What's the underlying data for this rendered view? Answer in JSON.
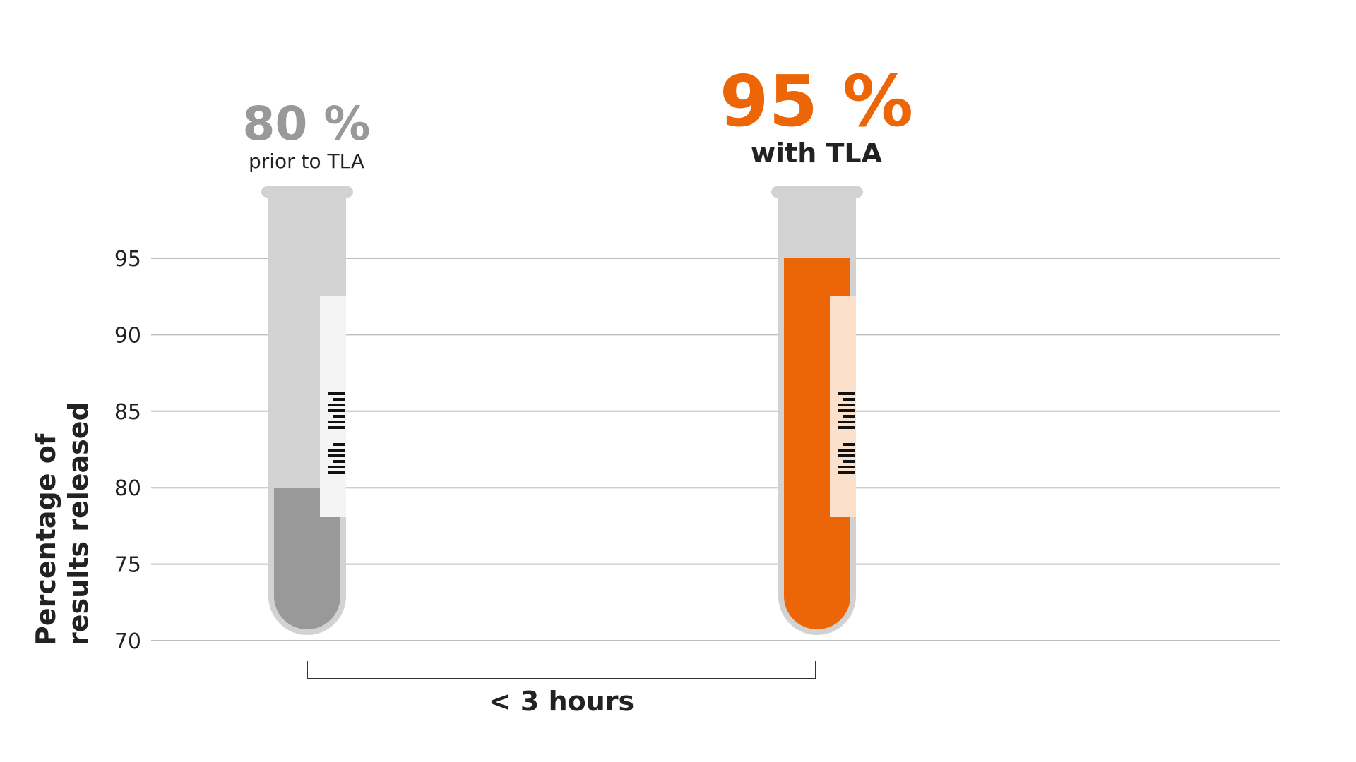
{
  "colors": {
    "before": "#999999",
    "after": "#ec6608",
    "tube": "#d2d2d2",
    "grid": "#bdbdbd",
    "text": "#222222"
  },
  "chart_data": {
    "type": "bar",
    "ylabel": "Percentage of results released",
    "ylabel_lines": [
      "Percentage of",
      "results released"
    ],
    "ylim": [
      70,
      95
    ],
    "yticks": [
      95,
      90,
      85,
      80,
      75,
      70
    ],
    "grid": true,
    "categories": [
      "prior to TLA",
      "with TLA"
    ],
    "series": [
      {
        "values": [
          80,
          95
        ],
        "labels": [
          "80 %",
          "95 %"
        ]
      }
    ],
    "annotations": [
      {
        "text": "< 3 hours",
        "between": [
          "prior to TLA",
          "with TLA"
        ]
      }
    ]
  }
}
